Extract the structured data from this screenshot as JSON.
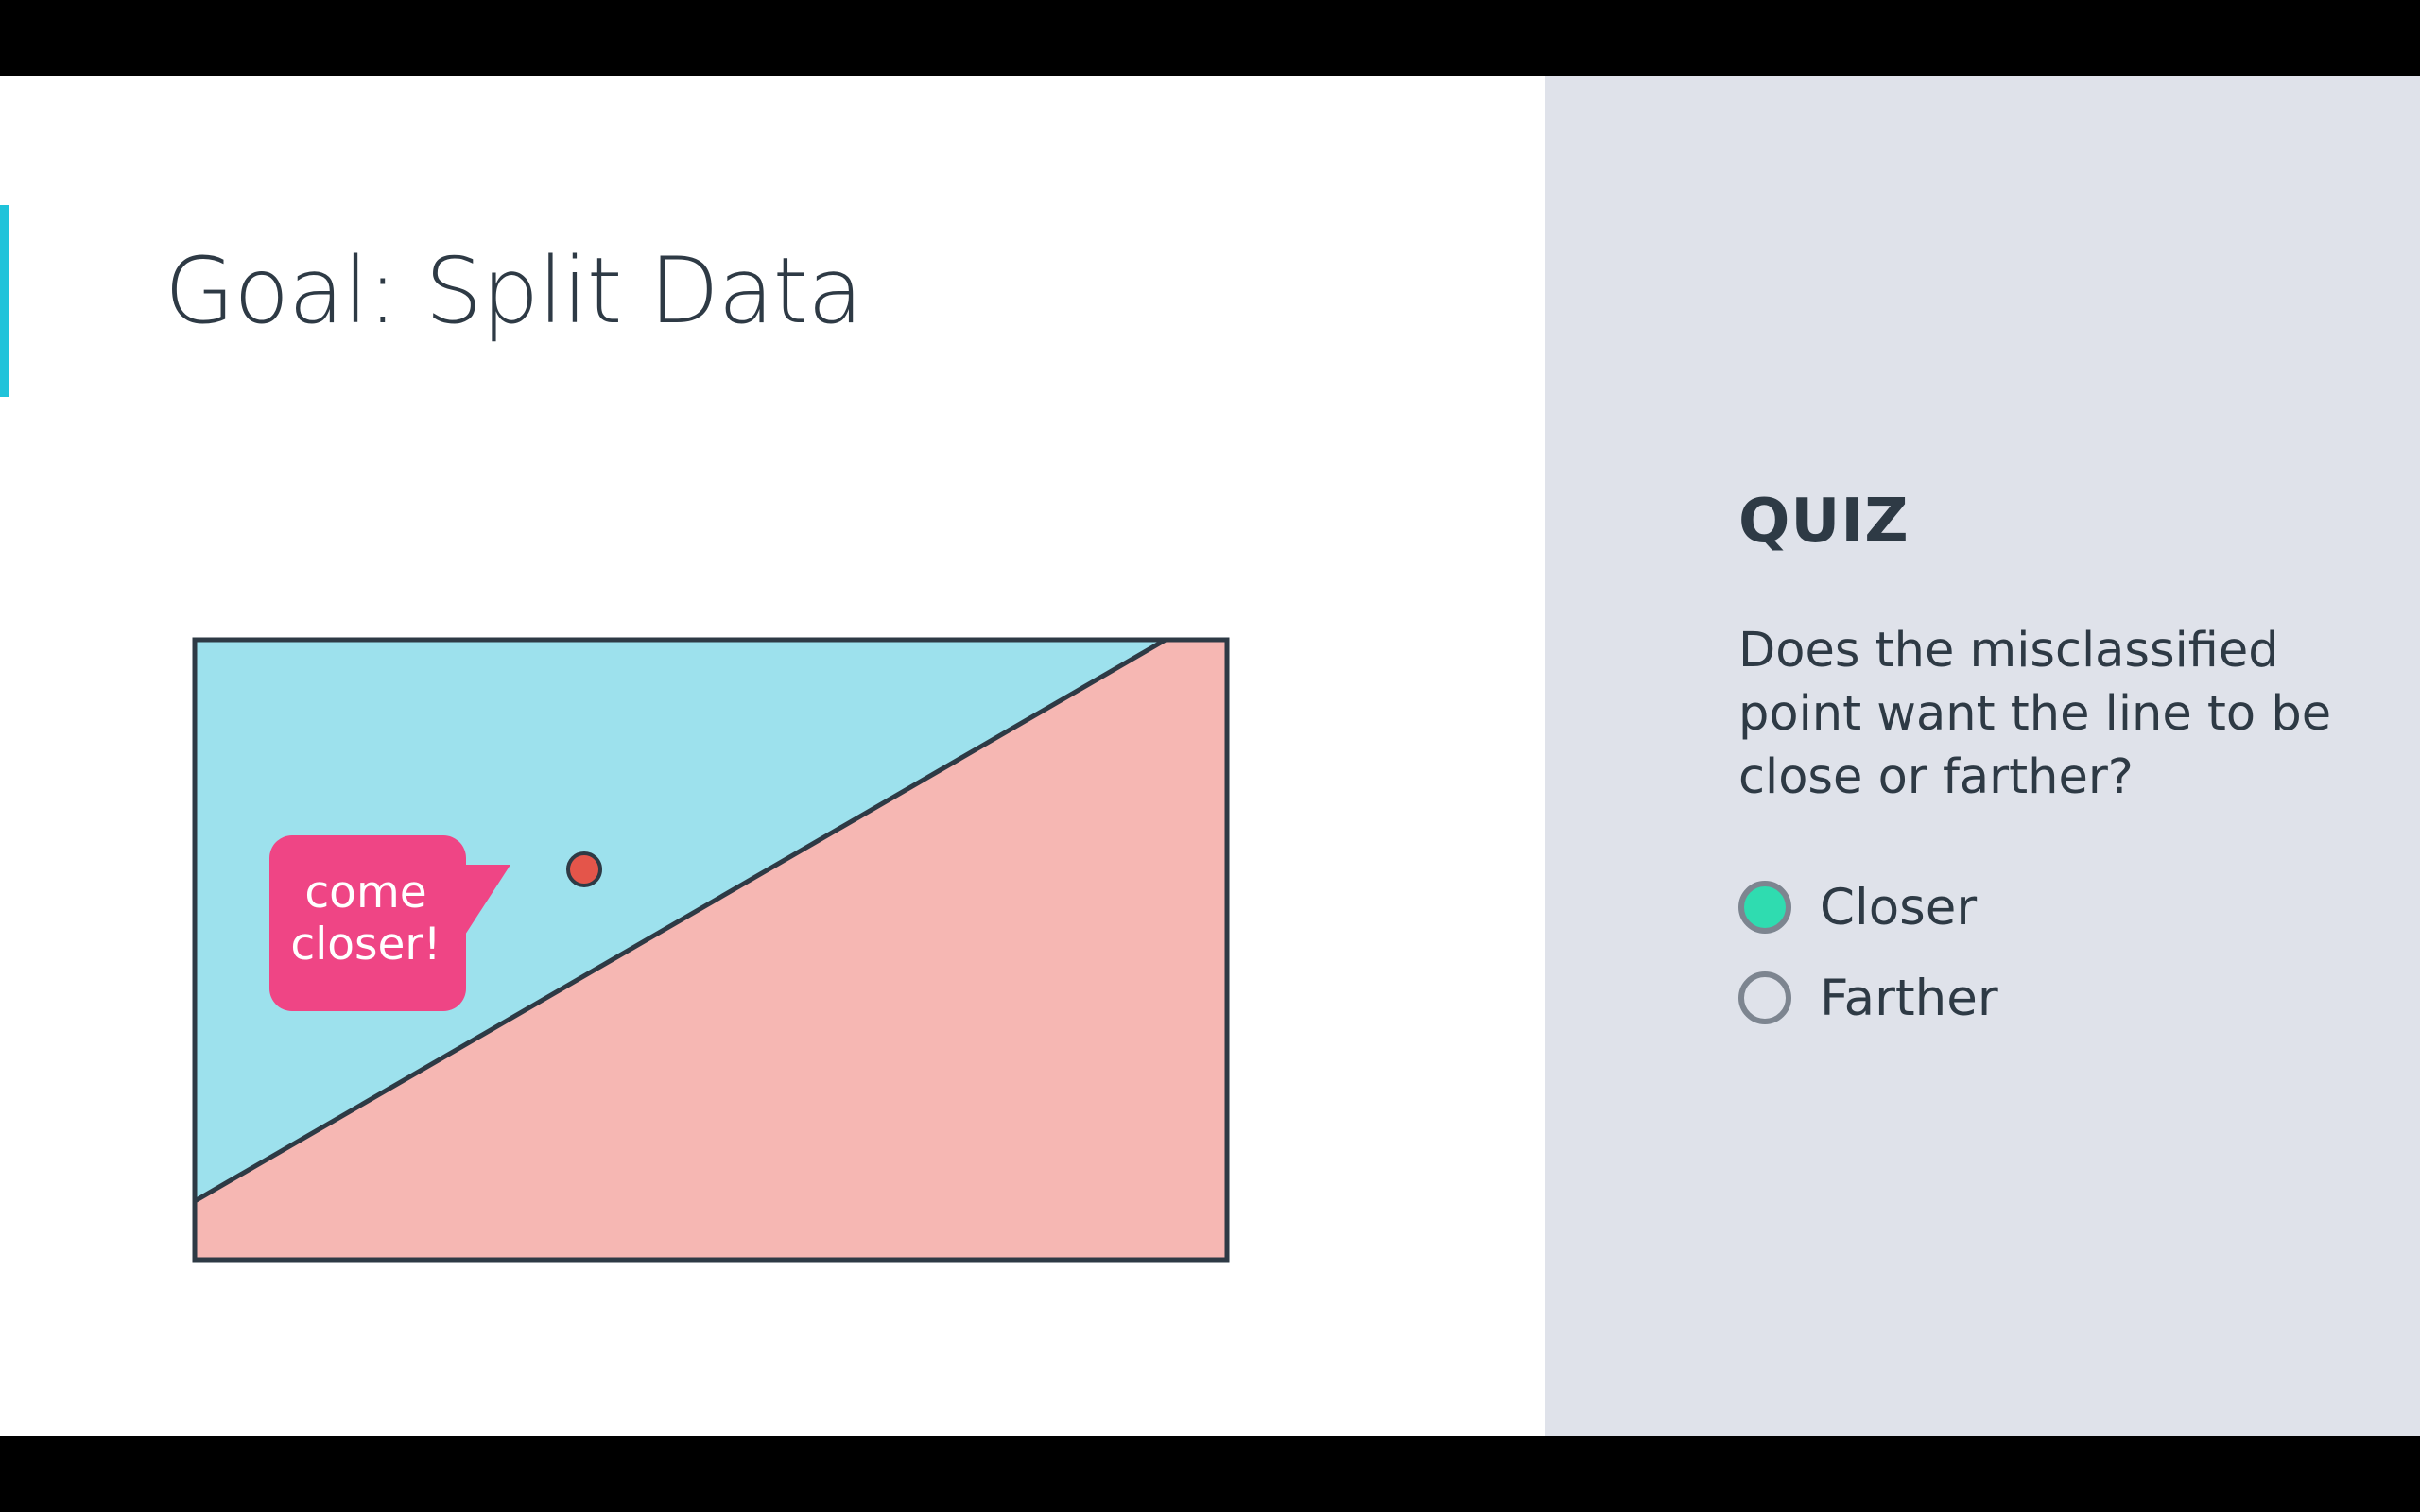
{
  "slide": {
    "title": "Goal: Split Data"
  },
  "diagram": {
    "callout_line1": "come",
    "callout_line2": "closer!",
    "region_colors": {
      "upper": "#9de1ed",
      "lower": "#f6b7b3",
      "point": "#e4554a",
      "callout": "#ef4585"
    }
  },
  "quiz": {
    "heading": "QUIZ",
    "question": "Does the misclassified point want the line to be close or farther?",
    "options": [
      {
        "label": "Closer",
        "selected": true
      },
      {
        "label": "Farther",
        "selected": false
      }
    ]
  },
  "colors": {
    "accent": "#1fc3da",
    "radio_selected": "#2fdcb0",
    "panel_bg": "#dfe2ea",
    "text": "#2e3a45"
  }
}
